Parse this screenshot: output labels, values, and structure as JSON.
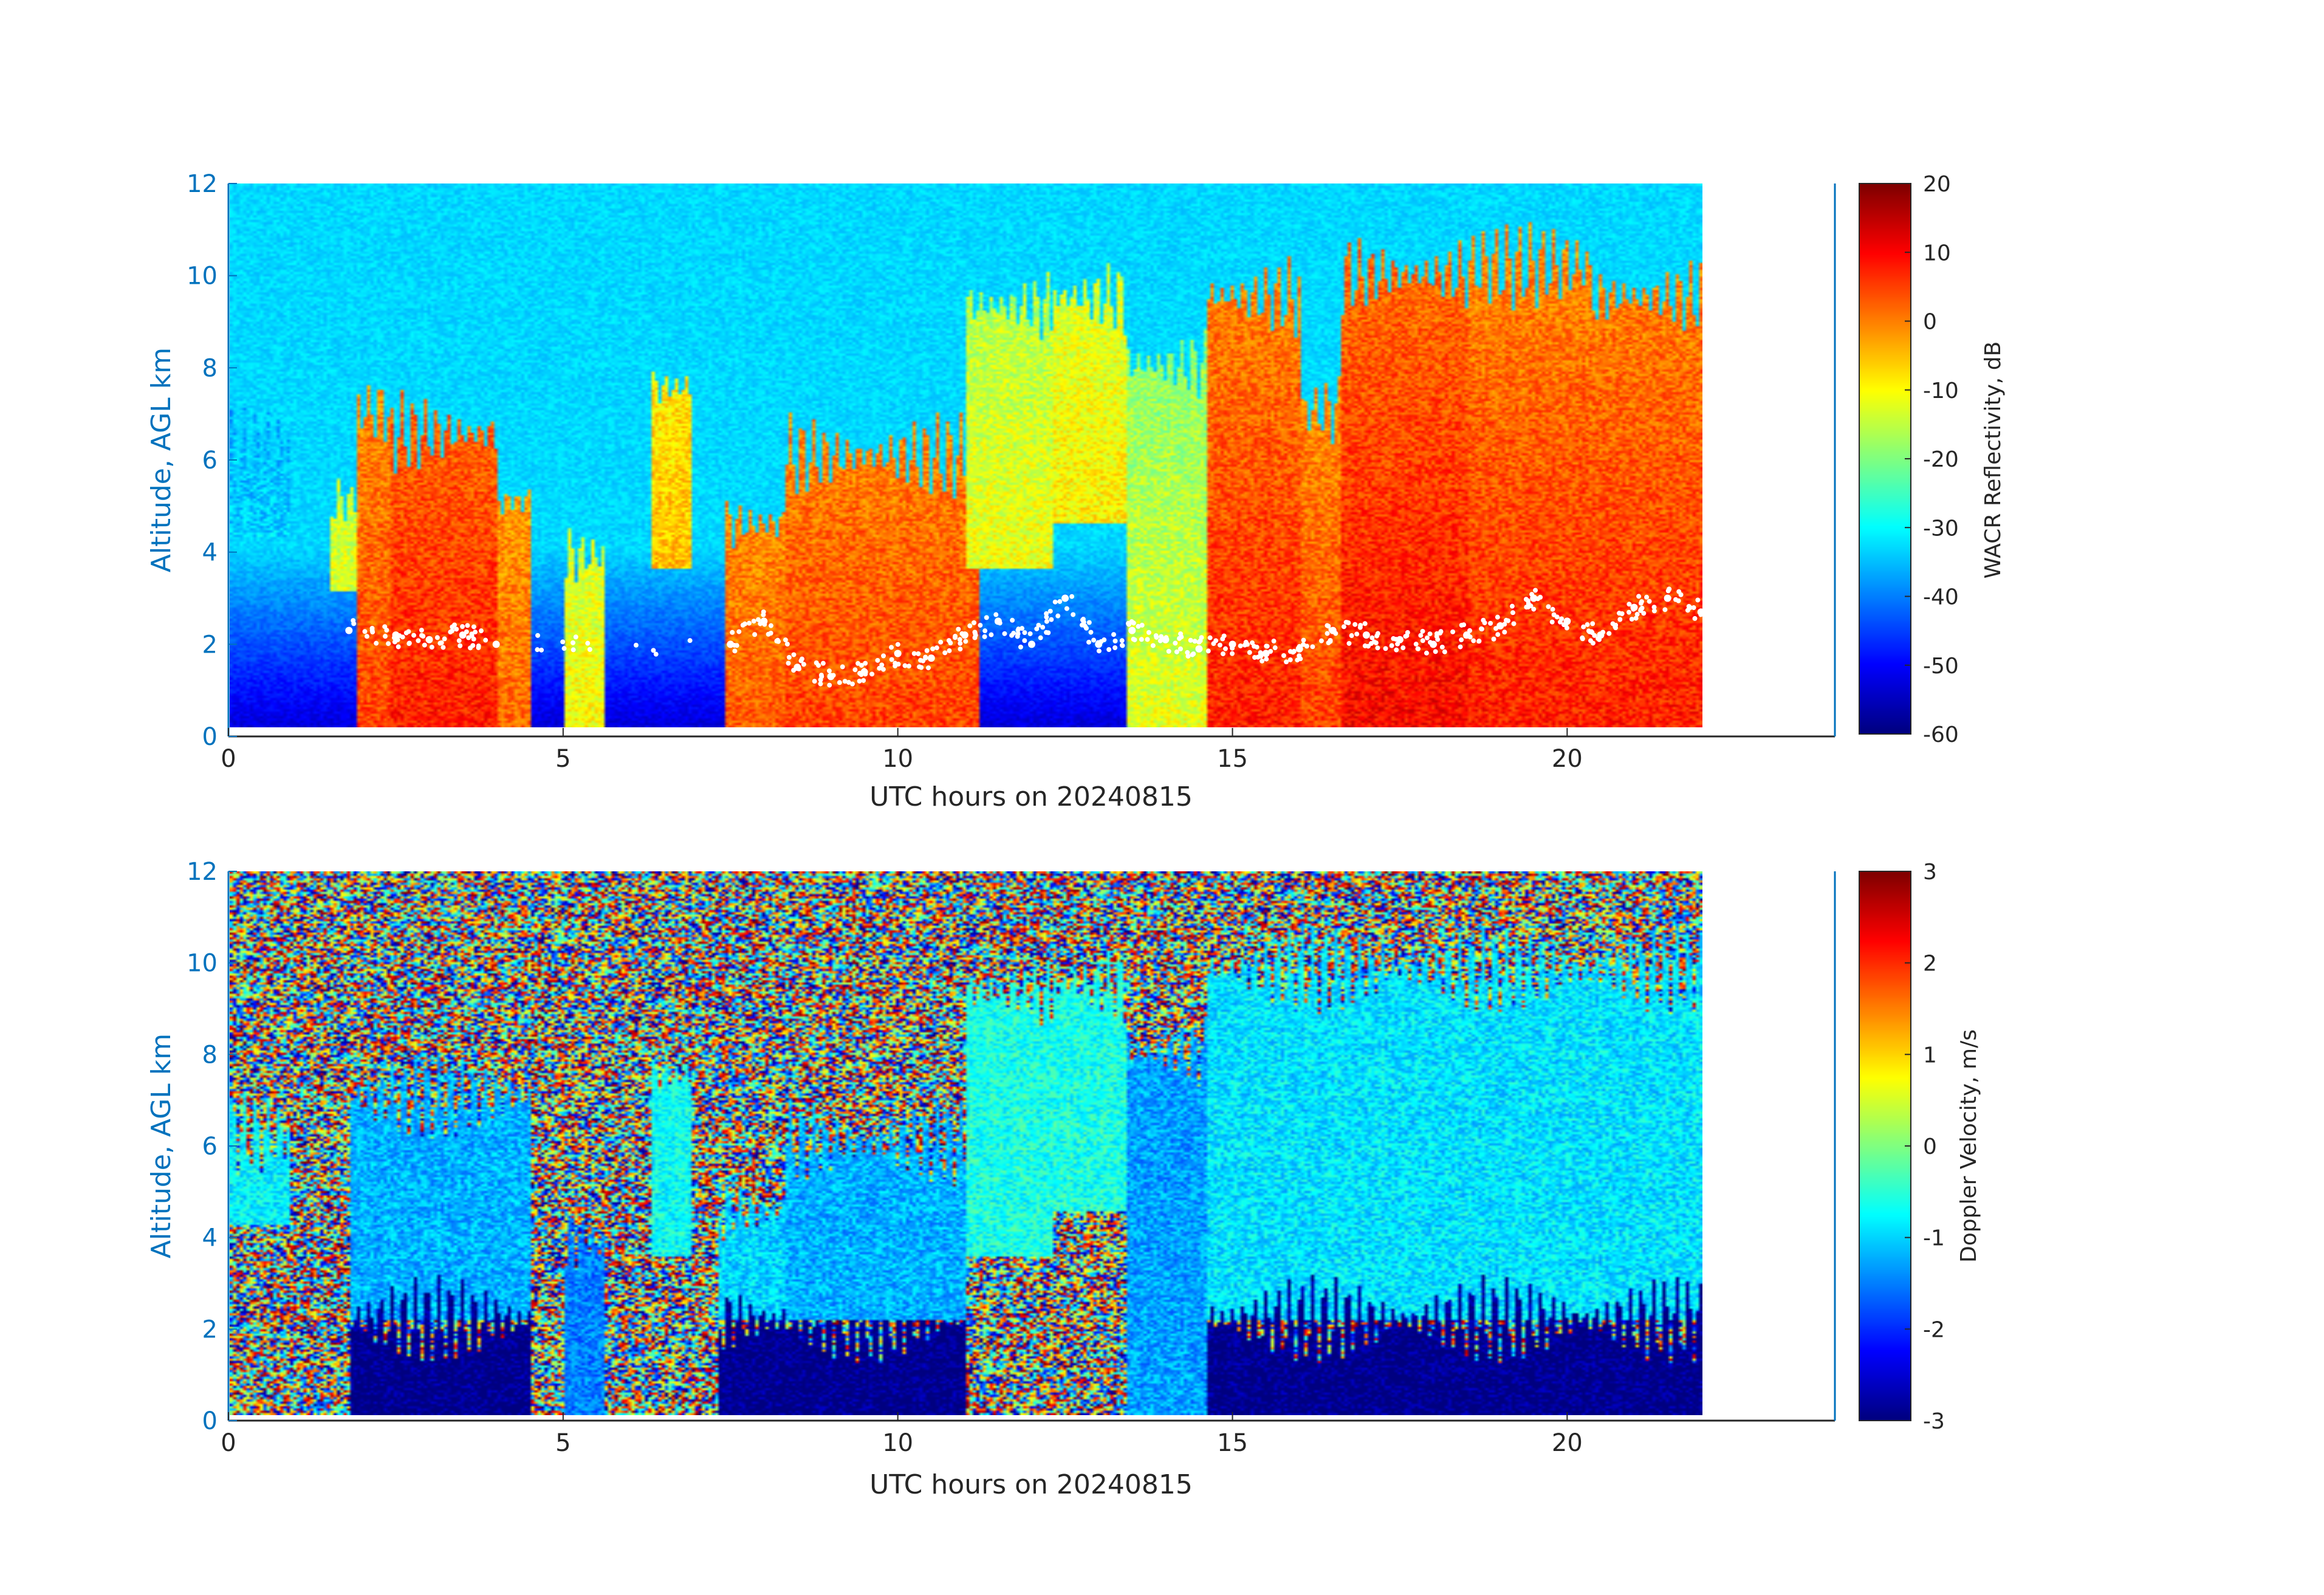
{
  "colors": {
    "axis_blue": "#0072BD",
    "axis_dark": "#262626",
    "overlay_points": "#ffffff",
    "colormap": "jet"
  },
  "chart_data": [
    {
      "type": "heatmap",
      "title": "",
      "xlabel": "UTC hours on 20240815",
      "ylabel": "Altitude, AGL km",
      "xlim": [
        0,
        24
      ],
      "ylim": [
        0,
        12
      ],
      "x_ticks": [
        0,
        5,
        10,
        15,
        20
      ],
      "y_ticks": [
        0,
        2,
        4,
        6,
        8,
        10,
        12
      ],
      "data_end_hour": 22,
      "colorbar": {
        "label": "WACR Reflectivity, dB",
        "min": -60,
        "max": 20,
        "ticks": [
          20,
          10,
          0,
          -10,
          -20,
          -30,
          -40,
          -50,
          -60
        ]
      },
      "background_dbz_clear_air": -33,
      "cloud_features_dbz": [
        {
          "start": 0.0,
          "end": 0.9,
          "base_km": 4.2,
          "top_km": 6.2,
          "value": -30
        },
        {
          "start": 1.5,
          "end": 1.9,
          "base_km": 3.0,
          "top_km": 5.0,
          "value": -10
        },
        {
          "start": 1.9,
          "end": 2.4,
          "base_km": 0.0,
          "top_km": 7.0,
          "value": 5
        },
        {
          "start": 2.4,
          "end": 4.0,
          "base_km": 0.0,
          "top_km": 6.5,
          "value": 8
        },
        {
          "start": 4.0,
          "end": 4.5,
          "base_km": 0.0,
          "top_km": 5.0,
          "value": 2
        },
        {
          "start": 5.0,
          "end": 5.6,
          "base_km": 0.0,
          "top_km": 3.8,
          "value": -10
        },
        {
          "start": 6.3,
          "end": 6.9,
          "base_km": 3.5,
          "top_km": 7.5,
          "value": -2
        },
        {
          "start": 7.4,
          "end": 8.3,
          "base_km": 0.0,
          "top_km": 4.5,
          "value": 3
        },
        {
          "start": 8.3,
          "end": 11.2,
          "base_km": 0.0,
          "top_km": 6.0,
          "value": 5
        },
        {
          "start": 11.0,
          "end": 12.3,
          "base_km": 3.5,
          "top_km": 9.3,
          "value": -8
        },
        {
          "start": 12.3,
          "end": 13.4,
          "base_km": 4.5,
          "top_km": 9.5,
          "value": -5
        },
        {
          "start": 13.4,
          "end": 14.6,
          "base_km": 0.0,
          "top_km": 8.0,
          "value": -12
        },
        {
          "start": 14.6,
          "end": 16.0,
          "base_km": 0.0,
          "top_km": 9.5,
          "value": 8
        },
        {
          "start": 16.0,
          "end": 16.6,
          "base_km": 0.0,
          "top_km": 7.0,
          "value": 5
        },
        {
          "start": 16.6,
          "end": 18.5,
          "base_km": 0.0,
          "top_km": 10.0,
          "value": 10
        },
        {
          "start": 18.5,
          "end": 20.3,
          "base_km": 0.0,
          "top_km": 10.2,
          "value": 8
        },
        {
          "start": 20.3,
          "end": 22.0,
          "base_km": 0.0,
          "top_km": 9.5,
          "value": 8
        }
      ],
      "overlay_cloud_base_km": [
        {
          "x": 1.8,
          "y": 2.3
        },
        {
          "x": 2.5,
          "y": 2.2
        },
        {
          "x": 3.0,
          "y": 2.1
        },
        {
          "x": 3.5,
          "y": 2.2
        },
        {
          "x": 4.0,
          "y": 2.0
        },
        {
          "x": 7.5,
          "y": 2.0
        },
        {
          "x": 8.0,
          "y": 2.5
        },
        {
          "x": 8.5,
          "y": 1.5
        },
        {
          "x": 9.0,
          "y": 1.3
        },
        {
          "x": 9.5,
          "y": 1.4
        },
        {
          "x": 10.0,
          "y": 1.8
        },
        {
          "x": 10.5,
          "y": 1.7
        },
        {
          "x": 11.0,
          "y": 2.2
        },
        {
          "x": 11.5,
          "y": 2.5
        },
        {
          "x": 12.0,
          "y": 2.0
        },
        {
          "x": 12.5,
          "y": 3.0
        },
        {
          "x": 13.0,
          "y": 2.0
        },
        {
          "x": 13.5,
          "y": 2.3
        },
        {
          "x": 14.0,
          "y": 2.1
        },
        {
          "x": 14.5,
          "y": 1.9
        },
        {
          "x": 15.0,
          "y": 2.0
        },
        {
          "x": 15.5,
          "y": 1.8
        },
        {
          "x": 16.0,
          "y": 1.9
        },
        {
          "x": 16.5,
          "y": 2.3
        },
        {
          "x": 17.0,
          "y": 2.2
        },
        {
          "x": 17.5,
          "y": 2.1
        },
        {
          "x": 18.0,
          "y": 2.0
        },
        {
          "x": 18.5,
          "y": 2.2
        },
        {
          "x": 19.0,
          "y": 2.4
        },
        {
          "x": 19.5,
          "y": 3.0
        },
        {
          "x": 20.0,
          "y": 2.5
        },
        {
          "x": 20.5,
          "y": 2.2
        },
        {
          "x": 21.0,
          "y": 2.8
        },
        {
          "x": 21.5,
          "y": 3.0
        },
        {
          "x": 22.0,
          "y": 2.7
        }
      ]
    },
    {
      "type": "heatmap",
      "title": "",
      "xlabel": "UTC hours on 20240815",
      "ylabel": "Altitude, AGL km",
      "xlim": [
        0,
        24
      ],
      "ylim": [
        0,
        12
      ],
      "x_ticks": [
        0,
        5,
        10,
        15,
        20
      ],
      "y_ticks": [
        0,
        2,
        4,
        6,
        8,
        10,
        12
      ],
      "data_end_hour": 22,
      "colorbar": {
        "label": "Doppler Velocity, m/s",
        "min": -3,
        "max": 3,
        "ticks": [
          3,
          2,
          1,
          0,
          -1,
          -2,
          -3
        ]
      },
      "background": "noise (uniform random velocities)",
      "cloud_features_mps": [
        {
          "start": 0.0,
          "end": 0.9,
          "base_km": 4.2,
          "top_km": 6.2,
          "value": -0.8
        },
        {
          "start": 1.8,
          "end": 4.5,
          "base_km": 2.1,
          "top_km": 7.0,
          "value": -1.2
        },
        {
          "start": 1.8,
          "end": 4.5,
          "base_km": 0.0,
          "top_km": 2.1,
          "value": -3.0
        },
        {
          "start": 5.0,
          "end": 5.6,
          "base_km": 0.0,
          "top_km": 3.8,
          "value": -1.5
        },
        {
          "start": 6.3,
          "end": 6.9,
          "base_km": 3.5,
          "top_km": 7.5,
          "value": -0.7
        },
        {
          "start": 7.3,
          "end": 8.3,
          "base_km": 2.1,
          "top_km": 4.5,
          "value": -1.0
        },
        {
          "start": 7.3,
          "end": 11.0,
          "base_km": 0.0,
          "top_km": 2.1,
          "value": -3.0
        },
        {
          "start": 8.3,
          "end": 11.0,
          "base_km": 2.1,
          "top_km": 6.0,
          "value": -1.2
        },
        {
          "start": 11.0,
          "end": 12.3,
          "base_km": 3.5,
          "top_km": 9.3,
          "value": -0.6
        },
        {
          "start": 12.3,
          "end": 13.4,
          "base_km": 4.5,
          "top_km": 9.5,
          "value": -0.6
        },
        {
          "start": 13.4,
          "end": 14.6,
          "base_km": 0.0,
          "top_km": 8.0,
          "value": -1.3
        },
        {
          "start": 14.6,
          "end": 22.0,
          "base_km": 2.1,
          "top_km": 9.8,
          "value": -0.9
        },
        {
          "start": 14.6,
          "end": 22.0,
          "base_km": 0.0,
          "top_km": 2.1,
          "value": -3.0
        }
      ]
    }
  ]
}
